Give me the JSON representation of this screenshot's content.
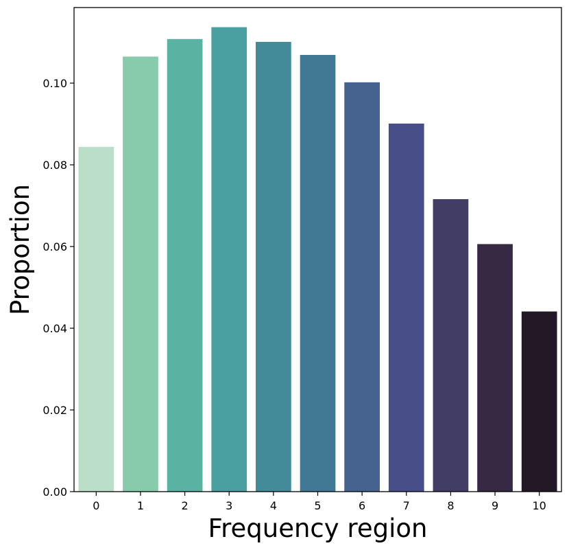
{
  "chart_data": {
    "type": "bar",
    "title": "",
    "xlabel": "Frequency region",
    "ylabel": "Proportion",
    "categories": [
      "0",
      "1",
      "2",
      "3",
      "4",
      "5",
      "6",
      "7",
      "8",
      "9",
      "10"
    ],
    "values": [
      0.0844,
      0.1065,
      0.1108,
      0.1137,
      0.1101,
      0.1069,
      0.1002,
      0.0901,
      0.0716,
      0.0606,
      0.0441
    ],
    "ylim": [
      0,
      0.1185
    ],
    "yticks": [
      0.0,
      0.02,
      0.04,
      0.06,
      0.08,
      0.1
    ],
    "ytick_labels": [
      "0.00",
      "0.02",
      "0.04",
      "0.06",
      "0.08",
      "0.10"
    ],
    "grid": false,
    "legend": false,
    "colors": [
      "#bbdec8",
      "#88caac",
      "#5ab3a2",
      "#4aa0a0",
      "#438b98",
      "#417893",
      "#46638f",
      "#484f88",
      "#423d64",
      "#352944",
      "#221826"
    ]
  }
}
